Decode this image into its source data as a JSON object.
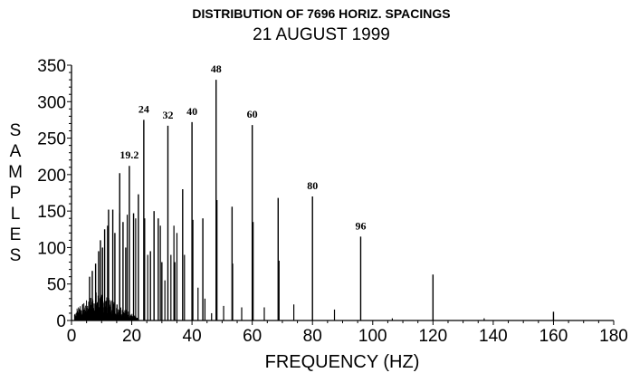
{
  "title": "DISTRIBUTION OF 7696 HORIZ. SPACINGS",
  "subtitle": "21 AUGUST 1999",
  "chart_data": {
    "type": "bar",
    "title": "DISTRIBUTION OF 7696 HORIZ. SPACINGS",
    "subtitle": "21 AUGUST 1999",
    "xlabel": "FREQUENCY (HZ)",
    "ylabel": "SAMPLES",
    "xlim": [
      0,
      180
    ],
    "ylim": [
      0,
      350
    ],
    "xticks": [
      0,
      20,
      40,
      60,
      80,
      100,
      120,
      140,
      160,
      180
    ],
    "yticks": [
      0,
      50,
      100,
      150,
      200,
      250,
      300,
      350
    ],
    "grid": false,
    "annotations": [
      {
        "text": "19.2",
        "x": 19.2,
        "y": 212
      },
      {
        "text": "24",
        "x": 24,
        "y": 275
      },
      {
        "text": "32",
        "x": 32,
        "y": 267
      },
      {
        "text": "40",
        "x": 40,
        "y": 272
      },
      {
        "text": "48",
        "x": 48,
        "y": 330
      },
      {
        "text": "60",
        "x": 60,
        "y": 268
      },
      {
        "text": "80",
        "x": 80,
        "y": 170
      },
      {
        "text": "96",
        "x": 96,
        "y": 115
      }
    ],
    "peaks": [
      {
        "x": 6.0,
        "y": 60
      },
      {
        "x": 6.9,
        "y": 68
      },
      {
        "x": 8.0,
        "y": 78
      },
      {
        "x": 9.0,
        "y": 95
      },
      {
        "x": 9.6,
        "y": 110
      },
      {
        "x": 10.3,
        "y": 100
      },
      {
        "x": 11.0,
        "y": 125
      },
      {
        "x": 12.0,
        "y": 130
      },
      {
        "x": 12.3,
        "y": 152
      },
      {
        "x": 13.7,
        "y": 152
      },
      {
        "x": 14.4,
        "y": 120
      },
      {
        "x": 16.0,
        "y": 202
      },
      {
        "x": 17.1,
        "y": 135
      },
      {
        "x": 18.0,
        "y": 100
      },
      {
        "x": 19.2,
        "y": 212
      },
      {
        "x": 20.6,
        "y": 147
      },
      {
        "x": 22.2,
        "y": 173
      },
      {
        "x": 24.0,
        "y": 275
      },
      {
        "x": 26.2,
        "y": 95
      },
      {
        "x": 27.4,
        "y": 150
      },
      {
        "x": 28.8,
        "y": 140
      },
      {
        "x": 30.0,
        "y": 80
      },
      {
        "x": 32.0,
        "y": 267
      },
      {
        "x": 34.3,
        "y": 80
      },
      {
        "x": 36.9,
        "y": 180
      },
      {
        "x": 40.0,
        "y": 272
      },
      {
        "x": 43.6,
        "y": 140
      },
      {
        "x": 48.0,
        "y": 330
      },
      {
        "x": 53.3,
        "y": 156
      },
      {
        "x": 60.0,
        "y": 268
      },
      {
        "x": 68.6,
        "y": 168
      },
      {
        "x": 80.0,
        "y": 170
      },
      {
        "x": 96.0,
        "y": 115
      },
      {
        "x": 120.0,
        "y": 63
      },
      {
        "x": 160.0,
        "y": 12
      }
    ],
    "secondary_lines": [
      {
        "x": 16.0,
        "y": 147
      },
      {
        "x": 18.5,
        "y": 145
      },
      {
        "x": 21.3,
        "y": 140
      },
      {
        "x": 24.3,
        "y": 140
      },
      {
        "x": 25.3,
        "y": 90
      },
      {
        "x": 29.5,
        "y": 130
      },
      {
        "x": 31.0,
        "y": 55
      },
      {
        "x": 33.0,
        "y": 90
      },
      {
        "x": 34.0,
        "y": 130
      },
      {
        "x": 35.0,
        "y": 120
      },
      {
        "x": 37.5,
        "y": 90
      },
      {
        "x": 40.3,
        "y": 138
      },
      {
        "x": 42.0,
        "y": 45
      },
      {
        "x": 44.3,
        "y": 30
      },
      {
        "x": 46.5,
        "y": 10
      },
      {
        "x": 48.3,
        "y": 165
      },
      {
        "x": 50.5,
        "y": 20
      },
      {
        "x": 53.5,
        "y": 78
      },
      {
        "x": 56.5,
        "y": 18
      },
      {
        "x": 60.3,
        "y": 135
      },
      {
        "x": 64.0,
        "y": 18
      },
      {
        "x": 68.9,
        "y": 82
      },
      {
        "x": 73.8,
        "y": 22
      },
      {
        "x": 87.3,
        "y": 15
      },
      {
        "x": 106.5,
        "y": 3
      },
      {
        "x": 137.0,
        "y": 3
      }
    ]
  }
}
